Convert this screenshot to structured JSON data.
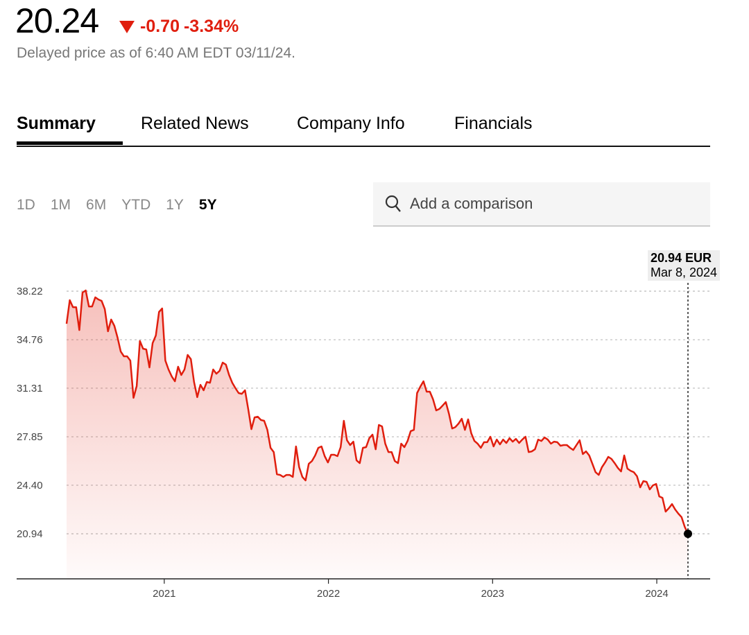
{
  "quote": {
    "price": "20.24",
    "change": "-0.70",
    "change_pct": "-3.34%",
    "direction_icon": "triangle-down-icon",
    "delayed_note": "Delayed price as of 6:40 AM EDT 03/11/24."
  },
  "tabs": [
    {
      "label": "Summary",
      "active": true
    },
    {
      "label": "Related News",
      "active": false
    },
    {
      "label": "Company Info",
      "active": false
    },
    {
      "label": "Financials",
      "active": false
    }
  ],
  "ranges": [
    {
      "label": "1D"
    },
    {
      "label": "1M"
    },
    {
      "label": "6M"
    },
    {
      "label": "YTD"
    },
    {
      "label": "1Y"
    },
    {
      "label": "5Y",
      "active": true
    }
  ],
  "search": {
    "placeholder": "Add a comparison",
    "icon": "search-icon"
  },
  "tooltip": {
    "value": "20.94 EUR",
    "date": "Mar 8, 2024"
  },
  "colors": {
    "line": "#e01e0e",
    "down": "#e01e0e"
  },
  "chart_data": {
    "type": "area",
    "title": "",
    "xlabel": "",
    "ylabel": "",
    "currency": "EUR",
    "x_start": "2020-05",
    "x_end": "2024-03-08",
    "x_range_years": [
      2020.405,
      2024.19
    ],
    "x_ticks": [
      "2021",
      "2022",
      "2023",
      "2024"
    ],
    "x_tick_values": [
      2021,
      2022,
      2023,
      2024
    ],
    "y_ticks": [
      "38.22",
      "34.76",
      "31.31",
      "27.85",
      "24.40",
      "20.94"
    ],
    "y_tick_values": [
      38.22,
      34.76,
      31.31,
      27.85,
      24.4,
      20.94
    ],
    "ylim": [
      20.94,
      38.22
    ],
    "grid": true,
    "series": [
      {
        "name": "Price",
        "values": [
          35.9,
          37.58,
          37.08,
          37.08,
          35.45,
          38.12,
          38.27,
          37.13,
          37.13,
          37.78,
          37.63,
          37.53,
          36.94,
          35.36,
          36.2,
          35.75,
          34.91,
          33.92,
          33.58,
          33.58,
          33.28,
          30.62,
          31.46,
          34.67,
          34.12,
          34.07,
          32.79,
          34.52,
          35.06,
          36.74,
          36.99,
          33.28,
          32.64,
          32.15,
          31.8,
          32.84,
          32.25,
          32.64,
          33.68,
          33.38,
          31.75,
          30.67,
          31.55,
          31.16,
          31.75,
          31.7,
          32.64,
          32.34,
          32.54,
          33.13,
          32.99,
          32.25,
          31.7,
          31.31,
          30.96,
          30.91,
          31.16,
          29.83,
          28.39,
          29.23,
          29.28,
          29.04,
          28.99,
          28.34,
          27.06,
          26.76,
          25.18,
          25.13,
          24.99,
          25.13,
          25.13,
          24.99,
          27.16,
          25.68,
          24.99,
          24.74,
          25.92,
          26.12,
          26.52,
          27.06,
          27.16,
          26.47,
          26.02,
          26.57,
          26.57,
          26.47,
          27.11,
          28.99,
          27.6,
          27.26,
          27.5,
          26.17,
          25.97,
          27.06,
          27.11,
          27.75,
          28.0,
          26.96,
          28.69,
          28.59,
          27.36,
          26.76,
          26.76,
          26.12,
          25.97,
          27.36,
          27.11,
          27.55,
          28.25,
          28.34,
          30.96,
          31.41,
          31.8,
          31.06,
          31.06,
          30.52,
          29.73,
          29.83,
          30.07,
          30.32,
          29.48,
          28.44,
          28.54,
          28.79,
          29.13,
          28.34,
          29.09,
          28.1,
          27.55,
          27.36,
          27.06,
          27.46,
          27.46,
          27.85,
          27.16,
          27.65,
          27.31,
          27.65,
          27.41,
          27.75,
          27.5,
          27.7,
          27.41,
          27.65,
          27.85,
          26.76,
          26.81,
          26.96,
          27.65,
          27.55,
          27.8,
          27.65,
          27.36,
          27.5,
          27.46,
          27.21,
          27.26,
          27.26,
          27.06,
          26.91,
          27.26,
          27.6,
          26.62,
          26.81,
          26.52,
          25.92,
          25.33,
          25.13,
          25.68,
          26.02,
          26.42,
          26.27,
          25.97,
          25.63,
          25.38,
          26.52,
          25.58,
          25.43,
          25.33,
          25.04,
          24.25,
          24.69,
          24.64,
          24.1,
          24.39,
          24.49,
          23.6,
          23.5,
          22.52,
          22.76,
          23.06,
          22.67,
          22.37,
          22.12,
          21.43,
          20.94
        ]
      }
    ],
    "highlight": {
      "date": "Mar 8, 2024",
      "value": 20.94
    }
  }
}
